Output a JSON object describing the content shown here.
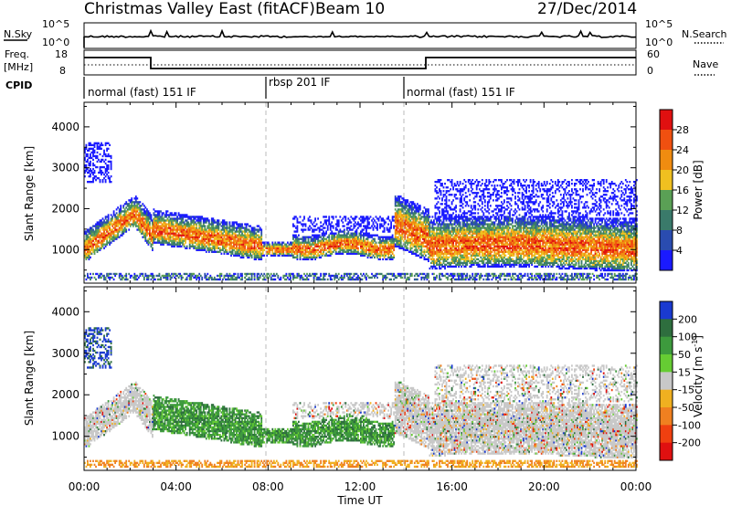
{
  "header": {
    "title": "Christmas Valley East (fitACF)",
    "beam": "Beam 10",
    "date": "27/Dec/2014"
  },
  "status_panels": {
    "nsky_label": "N.Sky",
    "nsky_ticks": [
      "10^5",
      "10^0"
    ],
    "nsearch_label": "N.Search",
    "nsearch_ticks": [
      "10^5",
      "10^0"
    ],
    "freq_label_top": "Freq.",
    "freq_label_unit": "[MHz]",
    "freq_ticks": [
      "18",
      "8"
    ],
    "nave_label": "Nave",
    "nave_ticks": [
      "60",
      "0"
    ],
    "cpid_label": "CPID",
    "cpid_segments": [
      {
        "label": "normal (fast) 151 IF",
        "start": "00:00",
        "end": "08:00"
      },
      {
        "label": "rbsp 201 IF",
        "start": "08:00",
        "end": "14:00"
      },
      {
        "label": "normal (fast) 151 IF",
        "start": "14:00",
        "end": "24:00"
      }
    ]
  },
  "chart_data": [
    {
      "type": "heatmap",
      "title": "Power",
      "xlabel": "Time UT",
      "ylabel": "Slant Range [km]",
      "xticks": [
        "00:00",
        "04:00",
        "08:00",
        "12:00",
        "16:00",
        "20:00",
        "00:00"
      ],
      "x_range_hours": [
        0,
        24
      ],
      "yticks": [
        1000,
        2000,
        3000,
        4000
      ],
      "ylim": [
        180,
        4600
      ],
      "colorbar_label": "Power [dB]",
      "colorbar_ticks": [
        4,
        8,
        12,
        16,
        20,
        24,
        28
      ],
      "colorbar_range": [
        0,
        32
      ],
      "colors": [
        "#1a1aff",
        "#2a4cb0",
        "#3a7a6a",
        "#5aa055",
        "#f0c020",
        "#f08c10",
        "#f05010",
        "#e01010"
      ]
    },
    {
      "type": "heatmap",
      "title": "Velocity",
      "xlabel": "Time UT",
      "ylabel": "Slant Range [km]",
      "xticks": [
        "00:00",
        "04:00",
        "08:00",
        "12:00",
        "16:00",
        "20:00",
        "00:00"
      ],
      "x_range_hours": [
        0,
        24
      ],
      "yticks": [
        1000,
        2000,
        3000,
        4000
      ],
      "ylim": [
        180,
        4600
      ],
      "colorbar_label": "Velocity [m s",
      "colorbar_label_sup": "-1",
      "colorbar_label_end": "]",
      "colorbar_ticks": [
        "200",
        "100",
        "50",
        "15",
        "-15",
        "-50",
        "-100",
        "-200"
      ],
      "colors": [
        "#1a3ad0",
        "#2e6e3e",
        "#3d9a3d",
        "#66cc33",
        "#c8c8c8",
        "#f0b020",
        "#f08020",
        "#f04010",
        "#e01010"
      ]
    }
  ]
}
